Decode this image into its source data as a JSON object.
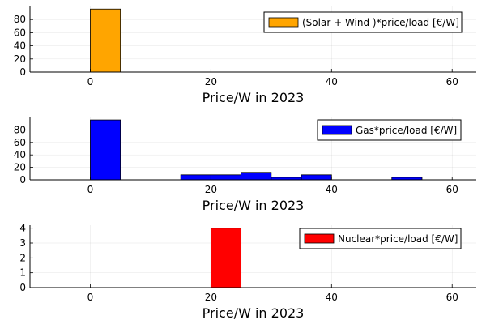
{
  "chart_data": [
    {
      "type": "bar",
      "xlabel": "Price/W in 2023",
      "ylabel": "",
      "xlim": [
        -10,
        64
      ],
      "ylim": [
        0,
        100
      ],
      "xticks": [
        0,
        20,
        40,
        60
      ],
      "yticks": [
        0,
        20,
        40,
        60,
        80
      ],
      "grid": true,
      "legend_position": "top-right",
      "bin_width": 5,
      "baseline_range": [
        -10,
        60
      ],
      "series": [
        {
          "name": "(Solar + Wind )*price/load [€/W]",
          "color": "#FFA500",
          "bins": [
            {
              "x0": 0,
              "x1": 5,
              "value": 96
            }
          ]
        }
      ]
    },
    {
      "type": "bar",
      "xlabel": "Price/W in 2023",
      "ylabel": "",
      "xlim": [
        -10,
        64
      ],
      "ylim": [
        0,
        100
      ],
      "xticks": [
        0,
        20,
        40,
        60
      ],
      "yticks": [
        0,
        20,
        40,
        60,
        80
      ],
      "grid": true,
      "legend_position": "top-right",
      "bin_width": 5,
      "baseline_range": [
        -10,
        60
      ],
      "series": [
        {
          "name": "Gas*price/load [€/W]",
          "color": "#0000FF",
          "bins": [
            {
              "x0": 0,
              "x1": 5,
              "value": 96
            },
            {
              "x0": 15,
              "x1": 20,
              "value": 8
            },
            {
              "x0": 20,
              "x1": 25,
              "value": 8
            },
            {
              "x0": 25,
              "x1": 30,
              "value": 12
            },
            {
              "x0": 30,
              "x1": 35,
              "value": 4
            },
            {
              "x0": 35,
              "x1": 40,
              "value": 8
            },
            {
              "x0": 50,
              "x1": 55,
              "value": 4
            }
          ]
        }
      ]
    },
    {
      "type": "bar",
      "xlabel": "Price/W in 2023",
      "ylabel": "",
      "xlim": [
        -10,
        64
      ],
      "ylim": [
        0,
        4.2
      ],
      "xticks": [
        0,
        20,
        40,
        60
      ],
      "yticks": [
        0,
        1,
        2,
        3,
        4
      ],
      "grid": true,
      "legend_position": "top-right",
      "bin_width": 5,
      "baseline_range": [
        -10,
        60
      ],
      "series": [
        {
          "name": "Nuclear*price/load [€/W]",
          "color": "#FF0000",
          "bins": [
            {
              "x0": 20,
              "x1": 25,
              "value": 4
            }
          ]
        }
      ]
    }
  ]
}
